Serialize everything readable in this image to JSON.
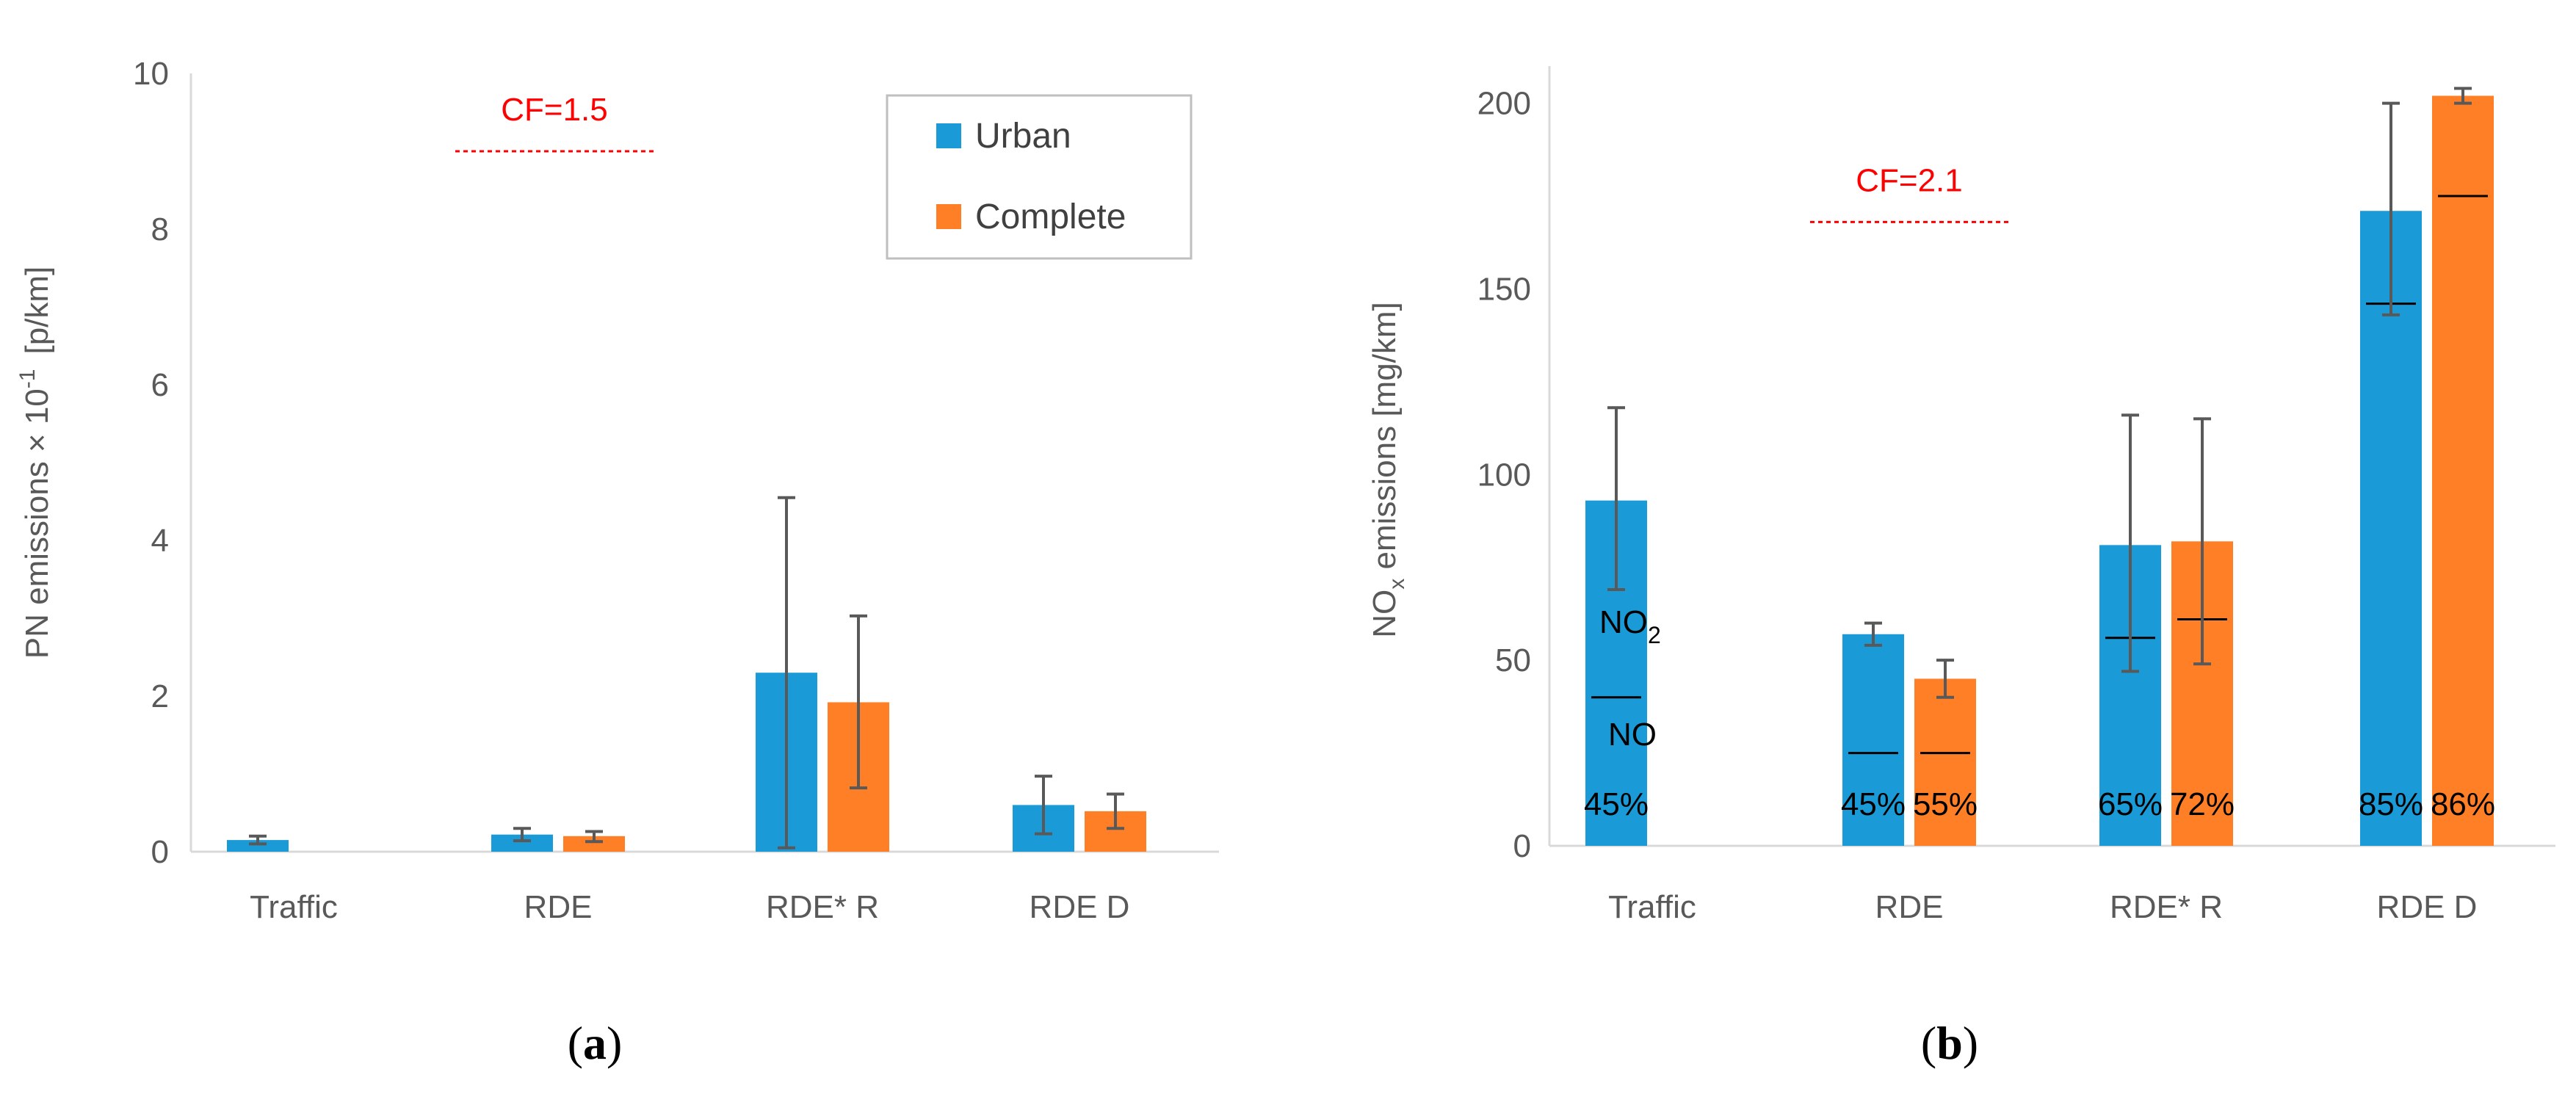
{
  "chart_data": [
    {
      "id": "a",
      "type": "bar",
      "panel_label": "a",
      "categories": [
        "Traffic",
        "RDE",
        "RDE* R",
        "RDE D"
      ],
      "ylabel": "PN emissions × 10",
      "ylabel_sup": "-1",
      "ylabel_unit": "[p/km]",
      "ylim": [
        0,
        10
      ],
      "yticks": [
        0,
        2,
        4,
        6,
        8,
        10
      ],
      "ytick_labels": [
        "0",
        "2",
        "4",
        "6",
        "8",
        "10"
      ],
      "series": [
        {
          "name": "Urban",
          "color": "#1a9bd7",
          "values": [
            0.15,
            0.22,
            2.3,
            0.6
          ],
          "err_low": [
            0.1,
            0.14,
            0.05,
            0.23
          ],
          "err_high": [
            0.2,
            0.3,
            4.55,
            0.97
          ]
        },
        {
          "name": "Complete",
          "color": "#ff7f27",
          "values": [
            null,
            0.2,
            1.92,
            0.52
          ],
          "err_low": [
            null,
            0.13,
            0.82,
            0.3
          ],
          "err_high": [
            null,
            0.26,
            3.03,
            0.74
          ]
        }
      ],
      "cf_label": "CF=1.5",
      "cf_value": 9.0,
      "legend": {
        "placement": "top-right",
        "items": [
          "Urban",
          "Complete"
        ]
      }
    },
    {
      "id": "b",
      "type": "bar",
      "panel_label": "b",
      "categories": [
        "Traffic",
        "RDE",
        "RDE* R",
        "RDE D"
      ],
      "ylabel_pre": "NO",
      "ylabel_sub": "x",
      "ylabel_post": " emissions [mg/km]",
      "ylim": [
        0,
        210
      ],
      "yticks": [
        0,
        50,
        100,
        150,
        200
      ],
      "ytick_labels": [
        "0",
        "50",
        "100",
        "150",
        "200"
      ],
      "series": [
        {
          "name": "Urban",
          "color": "#1a9bd7",
          "values": [
            93,
            57,
            81,
            171
          ],
          "err_low": [
            69,
            54,
            47,
            143
          ],
          "err_high": [
            118,
            60,
            116,
            200
          ],
          "no2_split": [
            40,
            25,
            56,
            146
          ],
          "no_percent": [
            "45%",
            "45%",
            "65%",
            "85%"
          ]
        },
        {
          "name": "Complete",
          "color": "#ff7f27",
          "values": [
            null,
            45,
            82,
            202
          ],
          "err_low": [
            null,
            40,
            49,
            200
          ],
          "err_high": [
            null,
            50,
            115,
            204
          ],
          "no2_split": [
            null,
            25,
            61,
            175
          ],
          "no_percent": [
            null,
            "55%",
            "72%",
            "86%"
          ]
        }
      ],
      "cf_label": "CF=2.1",
      "cf_value": 168,
      "annotations": {
        "no2_pre": "NO",
        "no2_sub": "2",
        "no": "NO"
      }
    }
  ]
}
